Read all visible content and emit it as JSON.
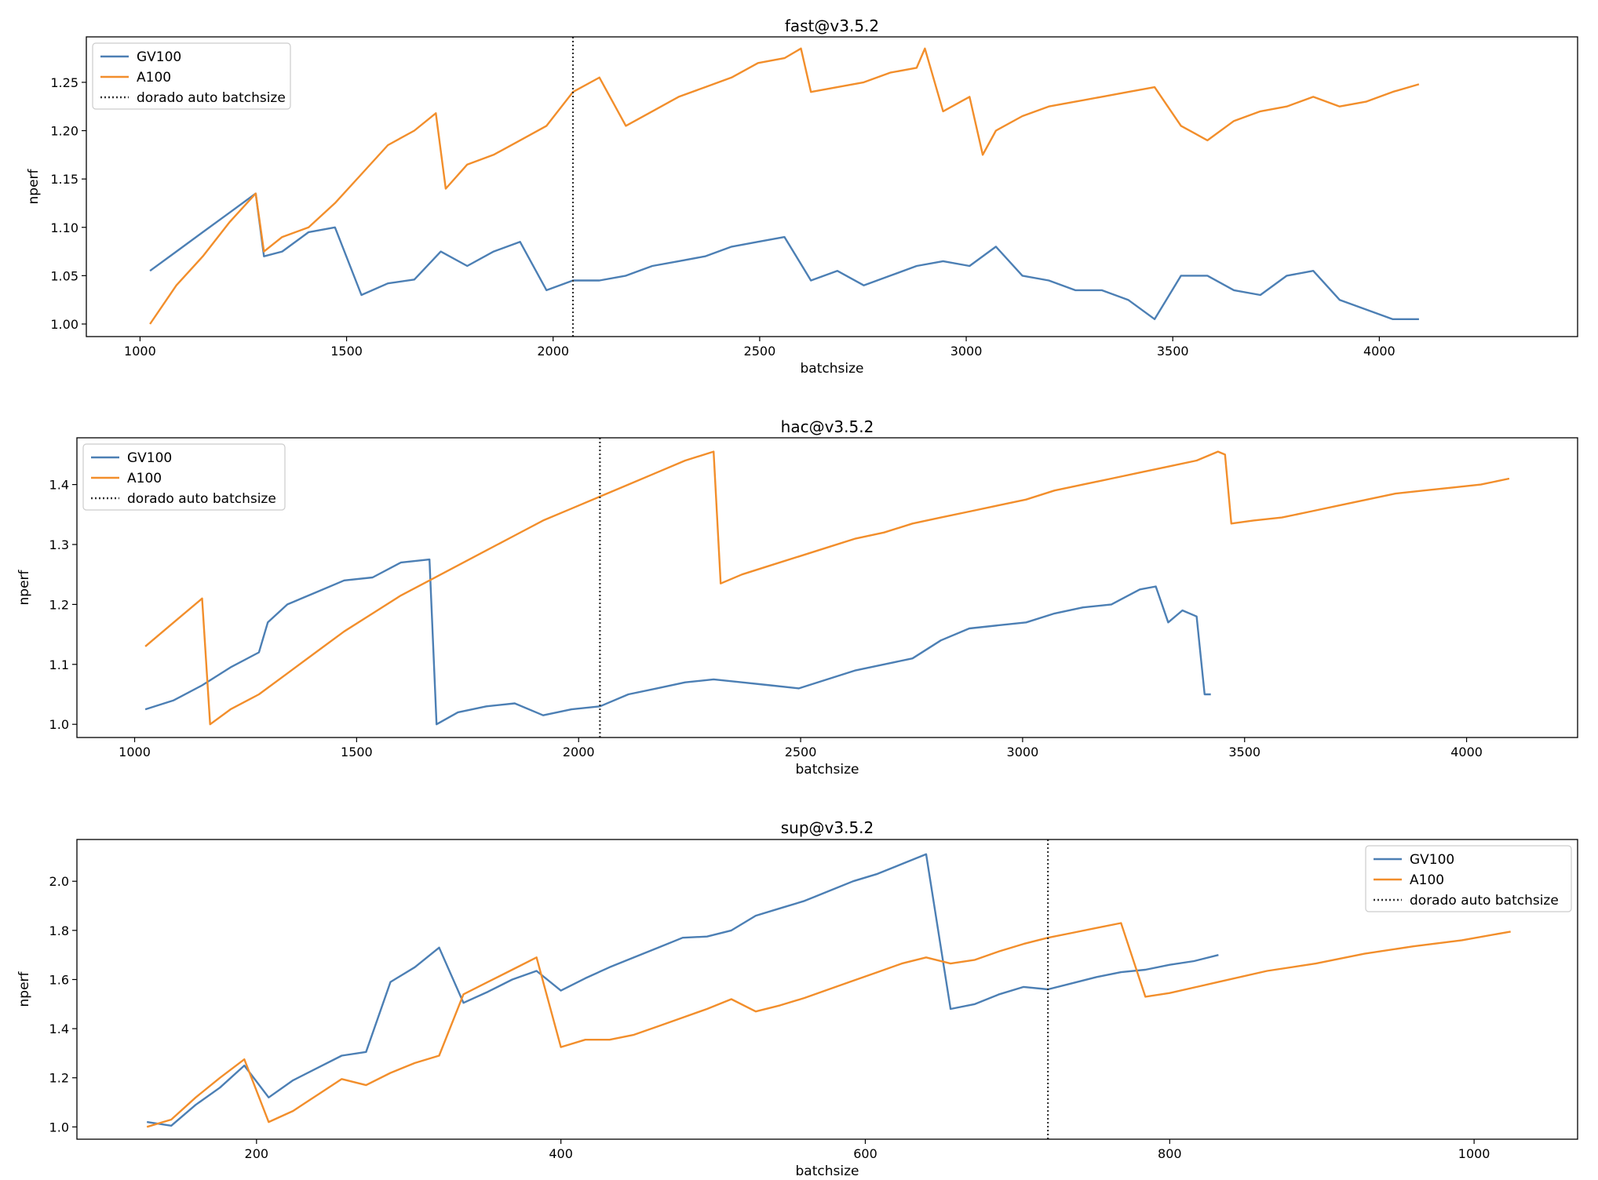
{
  "chart_data": [
    {
      "type": "line",
      "title": "fast@v3.5.2",
      "xlabel": "batchsize",
      "ylabel": "nperf",
      "xlim": [
        870,
        4480
      ],
      "ylim": [
        0.987,
        1.297
      ],
      "xticks": [
        1000,
        1500,
        2000,
        2500,
        3000,
        3500,
        4000
      ],
      "yticks": [
        1.0,
        1.05,
        1.1,
        1.15,
        1.2,
        1.25
      ],
      "ytick_labels": [
        "1.00",
        "1.05",
        "1.10",
        "1.15",
        "1.20",
        "1.25"
      ],
      "vline": 2048,
      "legend": {
        "position": "top-left",
        "entries": [
          "GV100",
          "A100",
          "dorado auto batchsize"
        ]
      },
      "series": [
        {
          "name": "GV100",
          "color": "#4c7fb4",
          "x": [
            1024,
            1088,
            1152,
            1216,
            1280,
            1300,
            1344,
            1408,
            1472,
            1536,
            1600,
            1664,
            1728,
            1792,
            1856,
            1920,
            1984,
            2048,
            2112,
            2176,
            2240,
            2304,
            2368,
            2432,
            2496,
            2560,
            2624,
            2688,
            2752,
            2816,
            2880,
            2944,
            3008,
            3072,
            3136,
            3200,
            3264,
            3328,
            3392,
            3456,
            3520,
            3584,
            3648,
            3712,
            3776,
            3840,
            3904,
            3968,
            4032,
            4096
          ],
          "y": [
            1.055,
            1.075,
            1.095,
            1.115,
            1.135,
            1.07,
            1.075,
            1.095,
            1.1,
            1.03,
            1.042,
            1.046,
            1.075,
            1.06,
            1.075,
            1.085,
            1.035,
            1.045,
            1.045,
            1.05,
            1.06,
            1.065,
            1.07,
            1.08,
            1.085,
            1.09,
            1.045,
            1.055,
            1.04,
            1.05,
            1.06,
            1.065,
            1.06,
            1.08,
            1.05,
            1.045,
            1.035,
            1.035,
            1.025,
            1.005,
            1.05,
            1.05,
            1.035,
            1.03,
            1.05,
            1.055,
            1.025,
            1.015,
            1.005,
            1.005
          ]
        },
        {
          "name": "A100",
          "color": "#f28e2b",
          "x": [
            1024,
            1088,
            1152,
            1216,
            1280,
            1300,
            1344,
            1408,
            1472,
            1536,
            1600,
            1664,
            1716,
            1740,
            1792,
            1856,
            1920,
            1984,
            2048,
            2112,
            2176,
            2240,
            2304,
            2368,
            2432,
            2496,
            2560,
            2600,
            2624,
            2688,
            2752,
            2816,
            2880,
            2900,
            2944,
            3008,
            3040,
            3072,
            3136,
            3200,
            3264,
            3328,
            3392,
            3456,
            3520,
            3584,
            3648,
            3712,
            3776,
            3840,
            3904,
            3968,
            4032,
            4096
          ],
          "y": [
            1.0,
            1.04,
            1.07,
            1.105,
            1.135,
            1.075,
            1.09,
            1.1,
            1.125,
            1.155,
            1.185,
            1.2,
            1.218,
            1.14,
            1.165,
            1.175,
            1.19,
            1.205,
            1.24,
            1.255,
            1.205,
            1.22,
            1.235,
            1.245,
            1.255,
            1.27,
            1.275,
            1.285,
            1.24,
            1.245,
            1.25,
            1.26,
            1.265,
            1.285,
            1.22,
            1.235,
            1.175,
            1.2,
            1.215,
            1.225,
            1.23,
            1.235,
            1.24,
            1.245,
            1.205,
            1.19,
            1.21,
            1.22,
            1.225,
            1.235,
            1.225,
            1.23,
            1.24,
            1.248
          ]
        }
      ]
    },
    {
      "type": "line",
      "title": "hac@v3.5.2",
      "xlabel": "batchsize",
      "ylabel": "nperf",
      "xlim": [
        870,
        4250
      ],
      "ylim": [
        0.978,
        1.478
      ],
      "xticks": [
        1000,
        1500,
        2000,
        2500,
        3000,
        3500,
        4000
      ],
      "yticks": [
        1.0,
        1.1,
        1.2,
        1.3,
        1.4
      ],
      "ytick_labels": [
        "1.0",
        "1.1",
        "1.2",
        "1.3",
        "1.4"
      ],
      "vline": 2048,
      "legend": {
        "position": "top-left",
        "entries": [
          "GV100",
          "A100",
          "dorado auto batchsize"
        ]
      },
      "series": [
        {
          "name": "GV100",
          "color": "#4c7fb4",
          "x": [
            1024,
            1088,
            1152,
            1216,
            1280,
            1300,
            1344,
            1408,
            1472,
            1536,
            1600,
            1664,
            1680,
            1728,
            1792,
            1856,
            1920,
            1984,
            2048,
            2112,
            2176,
            2240,
            2304,
            2368,
            2432,
            2496,
            2560,
            2624,
            2688,
            2752,
            2816,
            2880,
            2944,
            3008,
            3072,
            3136,
            3200,
            3264,
            3300,
            3328,
            3360,
            3392,
            3410,
            3424
          ],
          "y": [
            1.025,
            1.04,
            1.065,
            1.095,
            1.12,
            1.17,
            1.2,
            1.22,
            1.24,
            1.245,
            1.27,
            1.275,
            1.0,
            1.02,
            1.03,
            1.035,
            1.015,
            1.025,
            1.03,
            1.05,
            1.06,
            1.07,
            1.075,
            1.07,
            1.065,
            1.06,
            1.075,
            1.09,
            1.1,
            1.11,
            1.14,
            1.16,
            1.165,
            1.17,
            1.185,
            1.195,
            1.2,
            1.225,
            1.23,
            1.17,
            1.19,
            1.18,
            1.05,
            1.05
          ]
        },
        {
          "name": "A100",
          "color": "#f28e2b",
          "x": [
            1024,
            1088,
            1152,
            1170,
            1216,
            1280,
            1344,
            1408,
            1472,
            1536,
            1600,
            1664,
            1728,
            1792,
            1856,
            1920,
            1984,
            2048,
            2112,
            2176,
            2240,
            2304,
            2320,
            2368,
            2432,
            2496,
            2560,
            2624,
            2688,
            2752,
            2816,
            2880,
            2944,
            3008,
            3072,
            3136,
            3200,
            3264,
            3328,
            3392,
            3440,
            3456,
            3470,
            3520,
            3584,
            3648,
            3712,
            3776,
            3840,
            3904,
            3968,
            4032,
            4096
          ],
          "y": [
            1.13,
            1.17,
            1.21,
            1.0,
            1.025,
            1.05,
            1.085,
            1.12,
            1.155,
            1.185,
            1.215,
            1.24,
            1.265,
            1.29,
            1.315,
            1.34,
            1.36,
            1.38,
            1.4,
            1.42,
            1.44,
            1.455,
            1.235,
            1.25,
            1.265,
            1.28,
            1.295,
            1.31,
            1.32,
            1.335,
            1.345,
            1.355,
            1.365,
            1.375,
            1.39,
            1.4,
            1.41,
            1.42,
            1.43,
            1.44,
            1.455,
            1.45,
            1.335,
            1.34,
            1.345,
            1.355,
            1.365,
            1.375,
            1.385,
            1.39,
            1.395,
            1.4,
            1.41
          ]
        }
      ]
    },
    {
      "type": "line",
      "title": "sup@v3.5.2",
      "xlabel": "batchsize",
      "ylabel": "nperf",
      "xlim": [
        82,
        1068
      ],
      "ylim": [
        0.95,
        2.17
      ],
      "xticks": [
        200,
        400,
        600,
        800,
        1000
      ],
      "yticks": [
        1.0,
        1.2,
        1.4,
        1.6,
        1.8,
        2.0
      ],
      "ytick_labels": [
        "1.0",
        "1.2",
        "1.4",
        "1.6",
        "1.8",
        "2.0"
      ],
      "vline": 720,
      "legend": {
        "position": "top-right",
        "entries": [
          "GV100",
          "A100",
          "dorado auto batchsize"
        ]
      },
      "series": [
        {
          "name": "GV100",
          "color": "#4c7fb4",
          "x": [
            128,
            144,
            160,
            176,
            192,
            208,
            224,
            240,
            256,
            272,
            288,
            304,
            320,
            336,
            352,
            368,
            384,
            400,
            416,
            432,
            448,
            464,
            480,
            496,
            512,
            528,
            544,
            560,
            576,
            592,
            608,
            624,
            640,
            656,
            672,
            688,
            704,
            720,
            736,
            752,
            768,
            784,
            800,
            816,
            832
          ],
          "y": [
            1.02,
            1.005,
            1.09,
            1.16,
            1.25,
            1.12,
            1.19,
            1.24,
            1.29,
            1.305,
            1.59,
            1.65,
            1.73,
            1.505,
            1.55,
            1.6,
            1.635,
            1.555,
            1.605,
            1.65,
            1.69,
            1.73,
            1.77,
            1.775,
            1.8,
            1.86,
            1.89,
            1.92,
            1.96,
            2.0,
            2.03,
            2.07,
            2.11,
            1.48,
            1.5,
            1.54,
            1.57,
            1.56,
            1.585,
            1.61,
            1.63,
            1.64,
            1.66,
            1.675,
            1.7
          ]
        },
        {
          "name": "A100",
          "color": "#f28e2b",
          "x": [
            128,
            144,
            160,
            176,
            192,
            208,
            224,
            240,
            256,
            272,
            288,
            304,
            320,
            336,
            352,
            368,
            384,
            400,
            416,
            432,
            448,
            464,
            480,
            496,
            512,
            528,
            544,
            560,
            576,
            592,
            608,
            624,
            640,
            656,
            672,
            688,
            704,
            720,
            736,
            752,
            768,
            784,
            800,
            832,
            864,
            896,
            928,
            960,
            992,
            1024
          ],
          "y": [
            1.0,
            1.03,
            1.12,
            1.2,
            1.275,
            1.02,
            1.065,
            1.13,
            1.195,
            1.17,
            1.22,
            1.26,
            1.29,
            1.54,
            1.59,
            1.64,
            1.69,
            1.325,
            1.355,
            1.355,
            1.375,
            1.41,
            1.445,
            1.48,
            1.52,
            1.47,
            1.495,
            1.525,
            1.56,
            1.595,
            1.63,
            1.665,
            1.69,
            1.665,
            1.68,
            1.715,
            1.745,
            1.77,
            1.79,
            1.81,
            1.83,
            1.53,
            1.545,
            1.59,
            1.635,
            1.665,
            1.705,
            1.735,
            1.76,
            1.795
          ]
        }
      ]
    }
  ]
}
